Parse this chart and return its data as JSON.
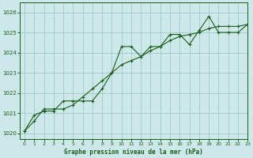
{
  "title": "Graphe pression niveau de la mer (hPa)",
  "bg_color": "#cce8e8",
  "grid_color": "#aacccc",
  "line_color": "#1a5c1a",
  "xlim": [
    -0.5,
    23
  ],
  "ylim": [
    1019.7,
    1026.5
  ],
  "yticks": [
    1020,
    1021,
    1022,
    1023,
    1024,
    1025,
    1026
  ],
  "xticks": [
    0,
    1,
    2,
    3,
    4,
    5,
    6,
    7,
    8,
    9,
    10,
    11,
    12,
    13,
    14,
    15,
    16,
    17,
    18,
    19,
    20,
    21,
    22,
    23
  ],
  "series1_x": [
    0,
    1,
    2,
    3,
    4,
    5,
    6,
    7,
    8,
    9,
    10,
    11,
    12,
    13,
    14,
    15,
    16,
    17,
    18,
    19,
    20,
    21,
    22,
    23
  ],
  "series1_y": [
    1020.1,
    1020.9,
    1021.1,
    1021.1,
    1021.6,
    1021.6,
    1021.6,
    1021.6,
    1022.2,
    1023.0,
    1024.3,
    1024.3,
    1023.8,
    1024.3,
    1024.3,
    1024.9,
    1024.9,
    1024.4,
    1025.1,
    1025.8,
    1025.0,
    1025.0,
    1025.0,
    1025.4
  ],
  "series2_x": [
    0,
    1,
    2,
    3,
    4,
    5,
    6,
    7,
    8,
    9,
    10,
    11,
    12,
    13,
    14,
    15,
    16,
    17,
    18,
    19,
    20,
    21,
    22,
    23
  ],
  "series2_y": [
    1020.1,
    1020.6,
    1021.2,
    1021.2,
    1021.2,
    1021.4,
    1021.8,
    1022.2,
    1022.6,
    1023.0,
    1023.4,
    1023.6,
    1023.8,
    1024.1,
    1024.3,
    1024.6,
    1024.8,
    1024.9,
    1025.0,
    1025.2,
    1025.3,
    1025.3,
    1025.3,
    1025.4
  ]
}
